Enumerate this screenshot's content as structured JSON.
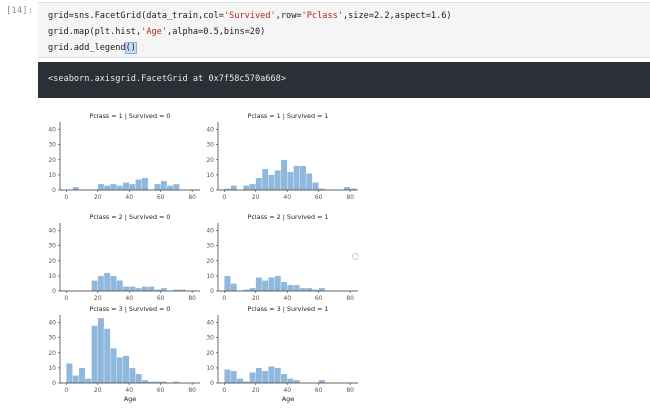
{
  "cell": {
    "prompt": "[14]:",
    "code": {
      "line1": {
        "a": "grid=sns.FacetGrid(data_train,col=",
        "b": "'Survived'",
        "c": ",row=",
        "d": "'Pclass'",
        "e": ",size=2.2,aspect=1.6)"
      },
      "line2": {
        "a": "grid.map(plt.hist,",
        "b": "'Age'",
        "c": ",alpha=0.5,bins=20)"
      },
      "line3": {
        "a": "grid.add_legend",
        "b": "()"
      }
    },
    "output_text": "<seaborn.axisgrid.FacetGrid at 0x7f58c570a668>"
  },
  "colors": {
    "bar": "#8fb8dc",
    "axis": "#333333"
  },
  "chart_data": [
    {
      "type": "bar",
      "title": "Pclass = 1 | Survived = 0",
      "xlabel": "",
      "x": [
        0,
        4,
        8,
        12,
        16,
        20,
        24,
        28,
        32,
        36,
        40,
        44,
        48,
        52,
        56,
        60,
        64,
        68,
        72,
        76,
        80
      ],
      "values": [
        0,
        2,
        0,
        0,
        0,
        4,
        3,
        4,
        3,
        5,
        4,
        7,
        8,
        0,
        4,
        6,
        3,
        4,
        0,
        0,
        0
      ],
      "xticks": [
        "0",
        "20",
        "40",
        "60",
        "80"
      ],
      "yticks": [
        "0",
        "10",
        "20",
        "30",
        "40"
      ],
      "ylim": [
        0,
        45
      ],
      "xlim": [
        -4,
        85
      ]
    },
    {
      "type": "bar",
      "title": "Pclass = 1 | Survived = 1",
      "xlabel": "",
      "x": [
        0,
        4,
        8,
        12,
        16,
        20,
        24,
        28,
        32,
        36,
        40,
        44,
        48,
        52,
        56,
        60,
        64,
        68,
        72,
        76,
        80
      ],
      "values": [
        1,
        3,
        0,
        3,
        4,
        8,
        14,
        10,
        13,
        20,
        12,
        16,
        16,
        11,
        5,
        1,
        0,
        0,
        0,
        2,
        1
      ],
      "xticks": [
        "0",
        "20",
        "40",
        "60",
        "80"
      ],
      "yticks": [
        "0",
        "10",
        "20",
        "30",
        "40"
      ],
      "ylim": [
        0,
        45
      ],
      "xlim": [
        -4,
        85
      ]
    },
    {
      "type": "bar",
      "title": "Pclass = 2 | Survived = 0",
      "xlabel": "",
      "x": [
        0,
        4,
        8,
        12,
        16,
        20,
        24,
        28,
        32,
        36,
        40,
        44,
        48,
        52,
        56,
        60,
        64,
        68,
        72,
        76,
        80
      ],
      "values": [
        0,
        0,
        0,
        0,
        7,
        10,
        12,
        10,
        7,
        3,
        3,
        2,
        3,
        3,
        1,
        2,
        0,
        1,
        1,
        0,
        0
      ],
      "xticks": [
        "0",
        "20",
        "40",
        "60",
        "80"
      ],
      "yticks": [
        "0",
        "10",
        "20",
        "30",
        "40"
      ],
      "ylim": [
        0,
        45
      ],
      "xlim": [
        -4,
        85
      ]
    },
    {
      "type": "bar",
      "title": "Pclass = 2 | Survived = 1",
      "xlabel": "",
      "x": [
        0,
        4,
        8,
        12,
        16,
        20,
        24,
        28,
        32,
        36,
        40,
        44,
        48,
        52,
        56,
        60,
        64,
        68,
        72,
        76,
        80
      ],
      "values": [
        10,
        5,
        0,
        1,
        2,
        9,
        7,
        9,
        10,
        6,
        4,
        4,
        2,
        2,
        1,
        2,
        0,
        0,
        0,
        0,
        0
      ],
      "xticks": [
        "0",
        "20",
        "40",
        "60",
        "80"
      ],
      "yticks": [
        "0",
        "10",
        "20",
        "30",
        "40"
      ],
      "ylim": [
        0,
        45
      ],
      "xlim": [
        -4,
        85
      ]
    },
    {
      "type": "bar",
      "title": "Pclass = 3 | Survived = 0",
      "xlabel": "Age",
      "x": [
        0,
        4,
        8,
        12,
        16,
        20,
        24,
        28,
        32,
        36,
        40,
        44,
        48,
        52,
        56,
        60,
        64,
        68,
        72,
        76,
        80
      ],
      "values": [
        13,
        5,
        10,
        3,
        38,
        43,
        36,
        23,
        17,
        18,
        10,
        6,
        2,
        1,
        1,
        1,
        0,
        1,
        0,
        0,
        0
      ],
      "xticks": [
        "0",
        "20",
        "40",
        "60",
        "80"
      ],
      "yticks": [
        "0",
        "10",
        "20",
        "30",
        "40"
      ],
      "ylim": [
        0,
        45
      ],
      "xlim": [
        -4,
        85
      ]
    },
    {
      "type": "bar",
      "title": "Pclass = 3 | Survived = 1",
      "xlabel": "Age",
      "x": [
        0,
        4,
        8,
        12,
        16,
        20,
        24,
        28,
        32,
        36,
        40,
        44,
        48,
        52,
        56,
        60,
        64,
        68,
        72,
        76,
        80
      ],
      "values": [
        9,
        8,
        3,
        1,
        7,
        10,
        8,
        11,
        10,
        6,
        3,
        2,
        0,
        0,
        0,
        2,
        0,
        0,
        0,
        0,
        0
      ],
      "xticks": [
        "0",
        "20",
        "40",
        "60",
        "80"
      ],
      "yticks": [
        "0",
        "10",
        "20",
        "30",
        "40"
      ],
      "ylim": [
        0,
        45
      ],
      "xlim": [
        -4,
        85
      ]
    }
  ]
}
